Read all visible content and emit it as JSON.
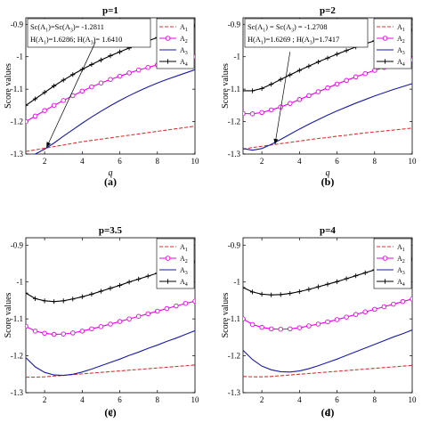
{
  "chart_data": [
    {
      "type": "line",
      "panel_label": "(a)",
      "title": "p=1",
      "xlabel": "q",
      "ylabel": "Score values",
      "xlim": [
        1,
        10
      ],
      "ylim": [
        -1.3,
        -0.88
      ],
      "xticks": [
        2,
        4,
        6,
        8,
        10
      ],
      "yticks": [
        -1.3,
        -1.2,
        -1.1,
        -1,
        -0.9
      ],
      "x": [
        1,
        1.5,
        2,
        2.5,
        3,
        3.5,
        4,
        4.5,
        5,
        5.5,
        6,
        6.5,
        7,
        7.5,
        8,
        8.5,
        9,
        9.5,
        10
      ],
      "series": [
        {
          "name": "A1",
          "sub": "1",
          "color": "#e03030",
          "dash": true,
          "marker": "none",
          "values": [
            -1.292,
            -1.287,
            -1.282,
            -1.277,
            -1.272,
            -1.267,
            -1.262,
            -1.258,
            -1.254,
            -1.25,
            -1.246,
            -1.242,
            -1.238,
            -1.234,
            -1.23,
            -1.226,
            -1.222,
            -1.218,
            -1.214
          ]
        },
        {
          "name": "A2",
          "sub": "2",
          "color": "#ee00ee",
          "dash": false,
          "marker": "circle",
          "values": [
            -1.2,
            -1.183,
            -1.166,
            -1.15,
            -1.135,
            -1.12,
            -1.106,
            -1.093,
            -1.081,
            -1.07,
            -1.06,
            -1.05,
            -1.041,
            -1.033,
            -1.025,
            -1.018,
            -1.011,
            -1.005,
            -1.0
          ]
        },
        {
          "name": "A3",
          "sub": "3",
          "color": "#1a1aa8",
          "dash": false,
          "marker": "none",
          "values": [
            -1.31,
            -1.3,
            -1.285,
            -1.266,
            -1.245,
            -1.225,
            -1.205,
            -1.186,
            -1.168,
            -1.151,
            -1.135,
            -1.12,
            -1.106,
            -1.093,
            -1.081,
            -1.07,
            -1.06,
            -1.05,
            -1.04
          ]
        },
        {
          "name": "A4",
          "sub": "4",
          "color": "#000000",
          "dash": false,
          "marker": "plus",
          "values": [
            -1.15,
            -1.13,
            -1.11,
            -1.09,
            -1.072,
            -1.055,
            -1.039,
            -1.024,
            -1.01,
            -0.997,
            -0.985,
            -0.973,
            -0.962,
            -0.951,
            -0.941,
            -0.931,
            -0.922,
            -0.913,
            -0.905
          ]
        }
      ],
      "legend": "top-right",
      "annotation": {
        "lines": [
          [
            {
              "t": "Sc(A"
            },
            {
              "t": "1",
              "sub": true
            },
            {
              "t": ")=Sc(A"
            },
            {
              "t": "3",
              "sub": true
            },
            {
              "t": ")= -1.2811"
            }
          ],
          [
            {
              "t": "H(A"
            },
            {
              "t": "1",
              "sub": true
            },
            {
              "t": ")=1.6286; H(A"
            },
            {
              "t": "3",
              "sub": true
            },
            {
              "t": ")= 1.6410"
            }
          ]
        ],
        "arrow_from": [
          4.7,
          -0.955
        ],
        "arrow_to": [
          2.1,
          -1.28
        ]
      }
    },
    {
      "type": "line",
      "panel_label": "(b)",
      "title": "p=2",
      "xlabel": "q",
      "ylabel": "Score values",
      "xlim": [
        1,
        10
      ],
      "ylim": [
        -1.3,
        -0.88
      ],
      "xticks": [
        2,
        4,
        6,
        8,
        10
      ],
      "yticks": [
        -1.3,
        -1.2,
        -1.1,
        -1,
        -0.9
      ],
      "x": [
        1,
        1.5,
        2,
        2.5,
        3,
        3.5,
        4,
        4.5,
        5,
        5.5,
        6,
        6.5,
        7,
        7.5,
        8,
        8.5,
        9,
        9.5,
        10
      ],
      "series": [
        {
          "name": "A1",
          "sub": "1",
          "color": "#e03030",
          "dash": true,
          "marker": "none",
          "values": [
            -1.285,
            -1.28,
            -1.276,
            -1.272,
            -1.268,
            -1.264,
            -1.26,
            -1.256,
            -1.252,
            -1.249,
            -1.245,
            -1.242,
            -1.238,
            -1.235,
            -1.232,
            -1.229,
            -1.226,
            -1.223,
            -1.22
          ]
        },
        {
          "name": "A2",
          "sub": "2",
          "color": "#ee00ee",
          "dash": false,
          "marker": "circle",
          "values": [
            -1.175,
            -1.176,
            -1.172,
            -1.164,
            -1.155,
            -1.144,
            -1.132,
            -1.12,
            -1.108,
            -1.096,
            -1.084,
            -1.073,
            -1.062,
            -1.052,
            -1.042,
            -1.033,
            -1.025,
            -1.017,
            -1.01
          ]
        },
        {
          "name": "A3",
          "sub": "3",
          "color": "#1a1aa8",
          "dash": false,
          "marker": "none",
          "values": [
            -1.283,
            -1.288,
            -1.283,
            -1.27,
            -1.255,
            -1.239,
            -1.223,
            -1.208,
            -1.194,
            -1.18,
            -1.167,
            -1.155,
            -1.143,
            -1.132,
            -1.121,
            -1.111,
            -1.101,
            -1.092,
            -1.083
          ]
        },
        {
          "name": "A4",
          "sub": "4",
          "color": "#000000",
          "dash": false,
          "marker": "plus",
          "values": [
            -1.105,
            -1.105,
            -1.098,
            -1.085,
            -1.07,
            -1.056,
            -1.042,
            -1.029,
            -1.016,
            -1.004,
            -0.992,
            -0.981,
            -0.97,
            -0.96,
            -0.951,
            -0.942,
            -0.933,
            -0.925,
            -0.918
          ]
        }
      ],
      "legend": "top-right",
      "annotation": {
        "lines": [
          [
            {
              "t": "Sc(A"
            },
            {
              "t": "1",
              "sub": true
            },
            {
              "t": ") = Sc(A"
            },
            {
              "t": "3",
              "sub": true
            },
            {
              "t": ") = -1.2708"
            }
          ],
          [
            {
              "t": "H(A"
            },
            {
              "t": "1",
              "sub": true
            },
            {
              "t": ")=1.6269 ; H(A"
            },
            {
              "t": "3",
              "sub": true
            },
            {
              "t": ")=1.7417"
            }
          ]
        ],
        "arrow_from": [
          3.5,
          -0.985
        ],
        "arrow_to": [
          2.7,
          -1.27
        ]
      }
    },
    {
      "type": "line",
      "panel_label": "(c)",
      "title": "p=3.5",
      "xlabel": "q",
      "ylabel": "Score values",
      "xlim": [
        1,
        10
      ],
      "ylim": [
        -1.3,
        -0.88
      ],
      "xticks": [
        2,
        4,
        6,
        8,
        10
      ],
      "yticks": [
        -1.3,
        -1.2,
        -1.1,
        -1,
        -0.9
      ],
      "x": [
        1,
        1.5,
        2,
        2.5,
        3,
        3.5,
        4,
        4.5,
        5,
        5.5,
        6,
        6.5,
        7,
        7.5,
        8,
        8.5,
        9,
        9.5,
        10
      ],
      "series": [
        {
          "name": "A1",
          "sub": "1",
          "color": "#e03030",
          "dash": true,
          "marker": "none",
          "values": [
            -1.258,
            -1.258,
            -1.257,
            -1.255,
            -1.253,
            -1.251,
            -1.249,
            -1.247,
            -1.245,
            -1.243,
            -1.241,
            -1.239,
            -1.237,
            -1.235,
            -1.233,
            -1.231,
            -1.229,
            -1.227,
            -1.225
          ]
        },
        {
          "name": "A2",
          "sub": "2",
          "color": "#ee00ee",
          "dash": false,
          "marker": "circle",
          "values": [
            -1.12,
            -1.133,
            -1.139,
            -1.142,
            -1.141,
            -1.138,
            -1.133,
            -1.127,
            -1.121,
            -1.114,
            -1.107,
            -1.1,
            -1.093,
            -1.086,
            -1.079,
            -1.072,
            -1.065,
            -1.058,
            -1.052
          ]
        },
        {
          "name": "A3",
          "sub": "3",
          "color": "#1a1aa8",
          "dash": false,
          "marker": "none",
          "values": [
            -1.205,
            -1.23,
            -1.245,
            -1.252,
            -1.253,
            -1.25,
            -1.244,
            -1.236,
            -1.227,
            -1.218,
            -1.209,
            -1.199,
            -1.19,
            -1.18,
            -1.171,
            -1.161,
            -1.152,
            -1.142,
            -1.132
          ]
        },
        {
          "name": "A4",
          "sub": "4",
          "color": "#000000",
          "dash": false,
          "marker": "plus",
          "values": [
            -1.03,
            -1.045,
            -1.051,
            -1.053,
            -1.051,
            -1.046,
            -1.04,
            -1.033,
            -1.025,
            -1.017,
            -1.009,
            -1.0,
            -0.992,
            -0.984,
            -0.976,
            -0.968,
            -0.96,
            -0.952,
            -0.945
          ]
        }
      ],
      "legend": "top-right"
    },
    {
      "type": "line",
      "panel_label": "(d)",
      "title": "p=4",
      "xlabel": "q",
      "ylabel": "Score values",
      "xlim": [
        1,
        10
      ],
      "ylim": [
        -1.3,
        -0.88
      ],
      "xticks": [
        2,
        4,
        6,
        8,
        10
      ],
      "yticks": [
        -1.3,
        -1.2,
        -1.1,
        -1,
        -0.9
      ],
      "x": [
        1,
        1.5,
        2,
        2.5,
        3,
        3.5,
        4,
        4.5,
        5,
        5.5,
        6,
        6.5,
        7,
        7.5,
        8,
        8.5,
        9,
        9.5,
        10
      ],
      "series": [
        {
          "name": "A1",
          "sub": "1",
          "color": "#e03030",
          "dash": true,
          "marker": "none",
          "values": [
            -1.256,
            -1.257,
            -1.257,
            -1.256,
            -1.254,
            -1.252,
            -1.25,
            -1.248,
            -1.246,
            -1.244,
            -1.242,
            -1.24,
            -1.238,
            -1.236,
            -1.234,
            -1.232,
            -1.23,
            -1.228,
            -1.226
          ]
        },
        {
          "name": "A2",
          "sub": "2",
          "color": "#ee00ee",
          "dash": false,
          "marker": "circle",
          "values": [
            -1.1,
            -1.115,
            -1.123,
            -1.127,
            -1.128,
            -1.127,
            -1.124,
            -1.119,
            -1.114,
            -1.108,
            -1.102,
            -1.095,
            -1.088,
            -1.081,
            -1.074,
            -1.067,
            -1.06,
            -1.053,
            -1.046
          ]
        },
        {
          "name": "A3",
          "sub": "3",
          "color": "#1a1aa8",
          "dash": false,
          "marker": "none",
          "values": [
            -1.185,
            -1.21,
            -1.228,
            -1.238,
            -1.243,
            -1.244,
            -1.241,
            -1.235,
            -1.227,
            -1.218,
            -1.209,
            -1.199,
            -1.189,
            -1.179,
            -1.169,
            -1.159,
            -1.149,
            -1.14,
            -1.13
          ]
        },
        {
          "name": "A4",
          "sub": "4",
          "color": "#000000",
          "dash": false,
          "marker": "plus",
          "values": [
            -1.015,
            -1.027,
            -1.033,
            -1.035,
            -1.034,
            -1.031,
            -1.026,
            -1.02,
            -1.013,
            -1.006,
            -0.999,
            -0.991,
            -0.983,
            -0.975,
            -0.967,
            -0.96,
            -0.952,
            -0.945,
            -0.938
          ]
        }
      ],
      "legend": "top-right"
    }
  ]
}
